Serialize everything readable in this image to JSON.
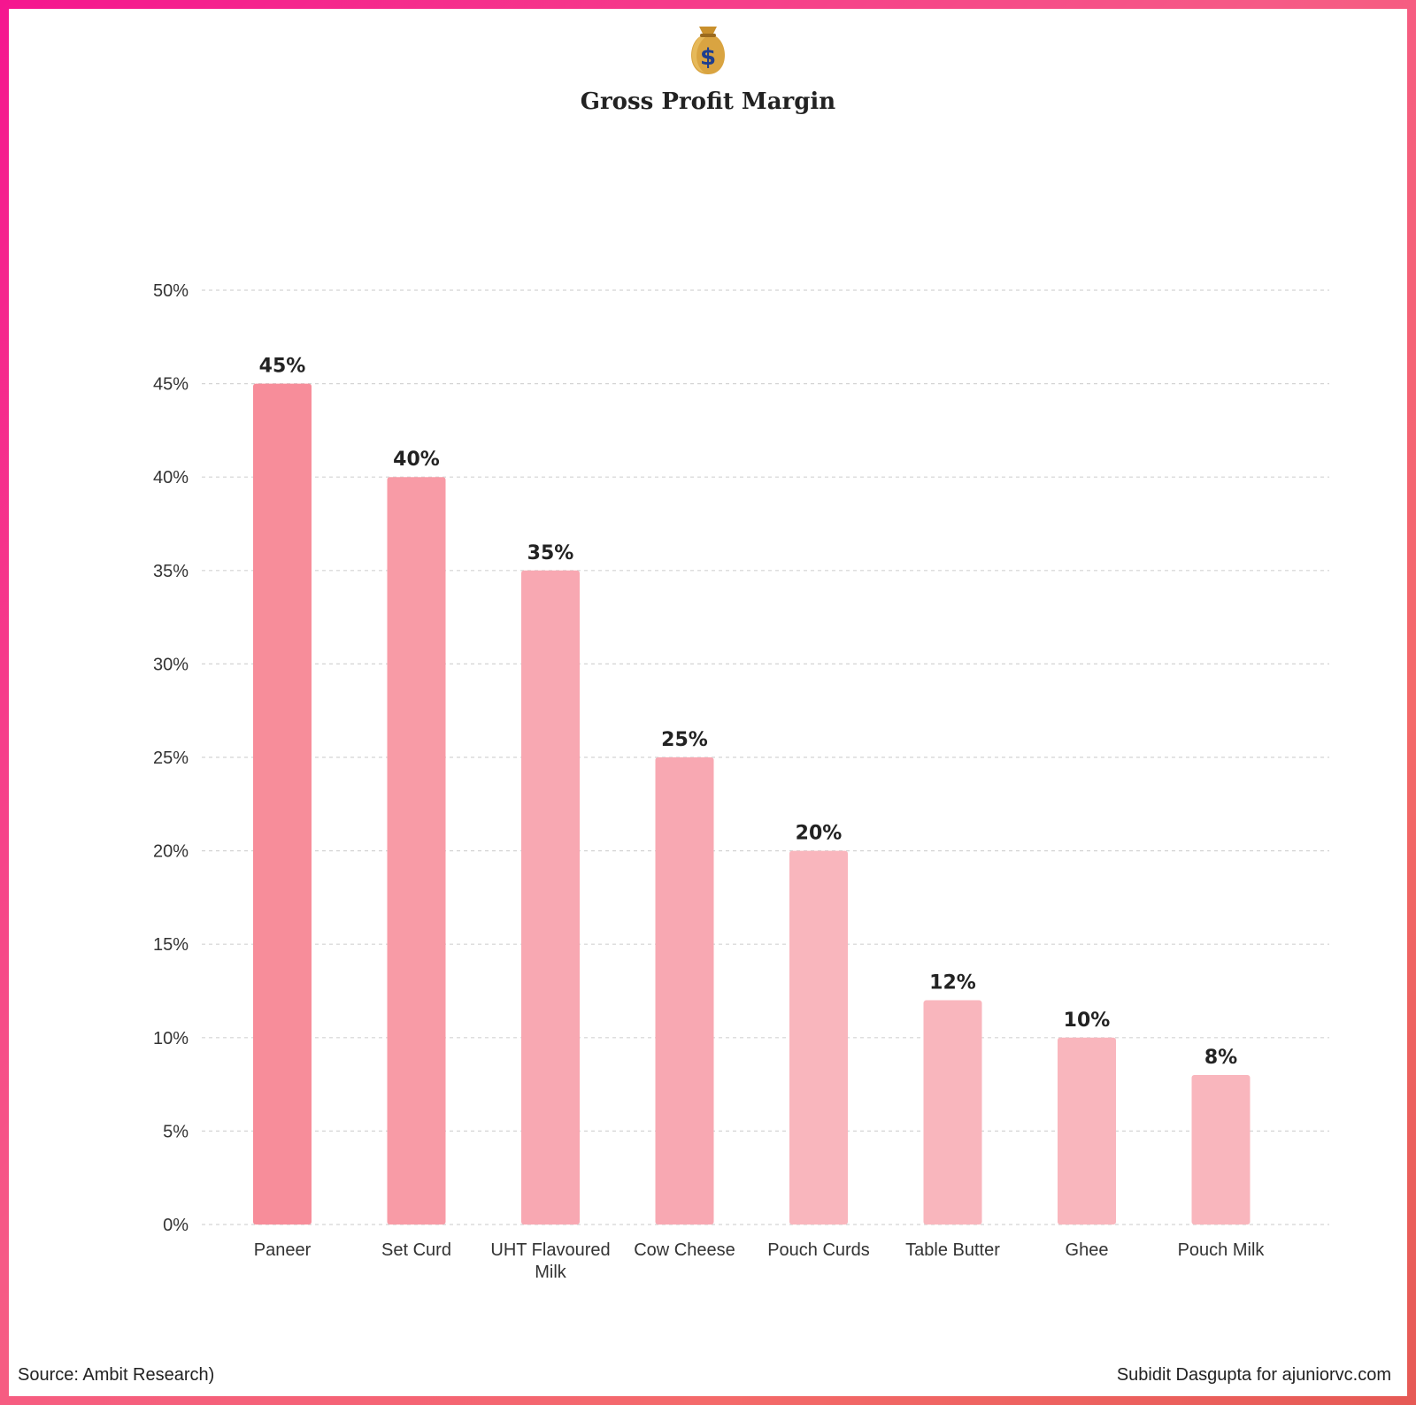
{
  "page": {
    "title": "Gross Profit Margin",
    "icon": "money-bag-icon",
    "source": "Source: Ambit Research)",
    "credit": "Subidit Dasgupta for ajuniorvc.com",
    "border_gradient": [
      "#f5168f",
      "#f46a6a",
      "#e65a55"
    ]
  },
  "chart_data": {
    "type": "bar",
    "title": "Gross Profit Margin",
    "xlabel": "",
    "ylabel": "",
    "categories": [
      "Paneer",
      "Set Curd",
      "UHT Flavoured Milk",
      "Cow Cheese",
      "Pouch Curds",
      "Table Butter",
      "Ghee",
      "Pouch Milk"
    ],
    "category_lines": [
      [
        "Paneer"
      ],
      [
        "Set Curd"
      ],
      [
        "UHT Flavoured",
        "Milk"
      ],
      [
        "Cow Cheese"
      ],
      [
        "Pouch Curds"
      ],
      [
        "Table Butter"
      ],
      [
        "Ghee"
      ],
      [
        "Pouch Milk"
      ]
    ],
    "values": [
      45,
      40,
      35,
      25,
      20,
      12,
      10,
      8
    ],
    "value_labels": [
      "45%",
      "40%",
      "35%",
      "25%",
      "20%",
      "12%",
      "10%",
      "8%"
    ],
    "bar_colors": [
      "#f78d9a",
      "#f89ba6",
      "#f8a8b2",
      "#f8a8b2",
      "#f9b6bd",
      "#f9b6bd",
      "#f9b6bd",
      "#f9b6bd"
    ],
    "ylim": [
      0,
      50
    ],
    "yticks": [
      0,
      5,
      10,
      15,
      20,
      25,
      30,
      35,
      40,
      45,
      50
    ],
    "ytick_labels": [
      "0%",
      "5%",
      "10%",
      "15%",
      "20%",
      "25%",
      "30%",
      "35%",
      "40%",
      "45%",
      "50%"
    ],
    "grid": true,
    "legend": "none"
  }
}
